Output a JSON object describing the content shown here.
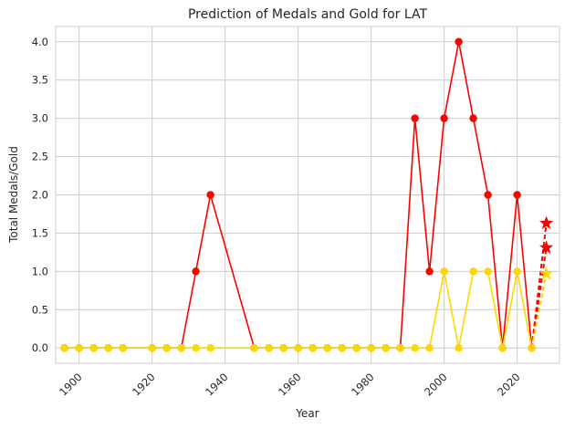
{
  "chart_data": {
    "type": "line",
    "title": "Prediction of Medals and Gold for LAT",
    "xlabel": "Year",
    "ylabel": "Total Medals/Gold",
    "xlim": [
      1893.6,
      2031.6
    ],
    "ylim": [
      -0.2,
      4.2
    ],
    "x_ticks": [
      1900,
      1920,
      1940,
      1960,
      1980,
      2000,
      2020
    ],
    "y_ticks": [
      0.0,
      0.5,
      1.0,
      1.5,
      2.0,
      2.5,
      3.0,
      3.5,
      4.0
    ],
    "grid": true,
    "x_tick_rotation": 45,
    "x": [
      1896,
      1900,
      1904,
      1908,
      1912,
      1920,
      1924,
      1928,
      1932,
      1936,
      1948,
      1952,
      1956,
      1960,
      1964,
      1968,
      1972,
      1976,
      1980,
      1984,
      1988,
      1992,
      1996,
      2000,
      2004,
      2008,
      2012,
      2016,
      2020,
      2024
    ],
    "series": [
      {
        "color": "#ff0000",
        "values": [
          0,
          0,
          0,
          0,
          0,
          0,
          0,
          0,
          1,
          2,
          0,
          0,
          0,
          0,
          0,
          0,
          0,
          0,
          0,
          0,
          0,
          3,
          1,
          3,
          4,
          3,
          2,
          0,
          2,
          0
        ]
      },
      {
        "color": "#ffd700",
        "values": [
          0,
          0,
          0,
          0,
          0,
          0,
          0,
          0,
          0,
          0,
          0,
          0,
          0,
          0,
          0,
          0,
          0,
          0,
          0,
          0,
          0,
          0,
          0,
          1,
          0,
          1,
          1,
          0,
          1,
          0
        ]
      }
    ],
    "predictions": [
      {
        "color": "#ff0000",
        "from": [
          2024,
          0
        ],
        "points": [
          [
            2028,
            1.63
          ],
          [
            2028,
            1.31
          ]
        ]
      },
      {
        "color": "#ffd700",
        "from": [
          2024,
          0
        ],
        "points": [
          [
            2028,
            0.97
          ]
        ]
      }
    ]
  }
}
